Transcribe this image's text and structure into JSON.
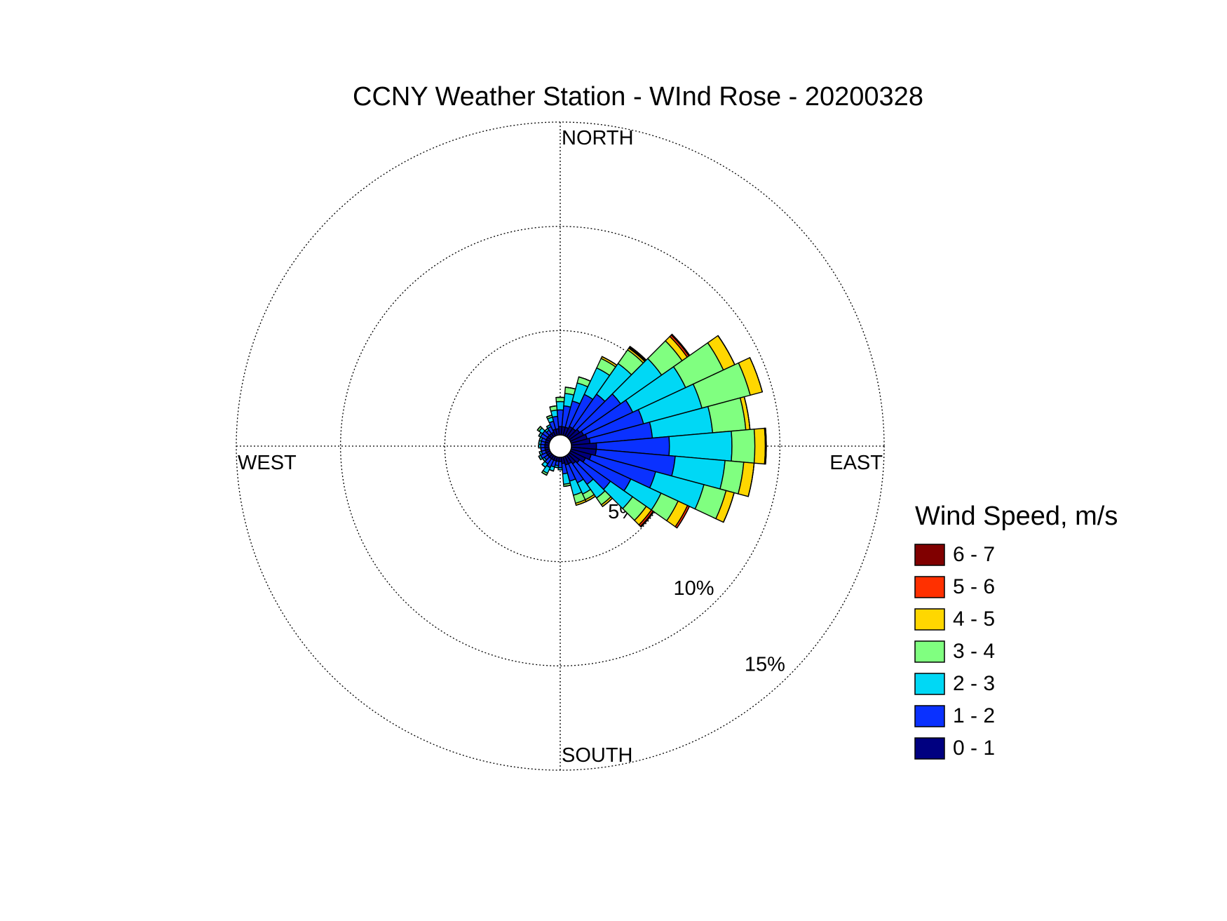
{
  "chart_data": {
    "type": "windrose",
    "title": "CCNY Weather Station - WInd Rose - 20200328",
    "legend_title": "Wind Speed, m/s",
    "x": [
      0,
      10,
      20,
      30,
      40,
      50,
      60,
      70,
      80,
      90,
      100,
      110,
      120,
      130,
      140,
      150,
      160,
      170,
      180,
      190,
      200,
      210,
      220,
      230,
      240,
      250,
      260,
      270,
      280,
      290,
      300,
      310,
      320,
      330,
      340,
      350
    ],
    "xticks": [
      {
        "value": 0,
        "label": "NORTH"
      },
      {
        "value": 90,
        "label": "EAST"
      },
      {
        "value": 180,
        "label": "SOUTH"
      },
      {
        "value": 270,
        "label": "WEST"
      }
    ],
    "rlim": [
      0,
      15
    ],
    "rticks": [
      {
        "value": 5,
        "label": "5%"
      },
      {
        "value": 10,
        "label": "10%"
      },
      {
        "value": 15,
        "label": "15%"
      }
    ],
    "grid": true,
    "series": [
      {
        "name": "0 - 1",
        "color": "#000080",
        "values": [
          0.4,
          0.4,
          0.4,
          0.5,
          0.5,
          0.6,
          0.7,
          0.8,
          0.9,
          1.2,
          1.2,
          1.0,
          0.8,
          0.6,
          0.5,
          0.4,
          0.4,
          0.3,
          0.2,
          0.2,
          0.2,
          0.2,
          0.2,
          0.2,
          0.2,
          0.2,
          0.2,
          0.2,
          0.2,
          0.2,
          0.2,
          0.2,
          0.2,
          0.2,
          0.3,
          0.3
        ]
      },
      {
        "name": "1 - 2",
        "color": "#0a31ff",
        "values": [
          0.8,
          1.0,
          1.3,
          1.7,
          2.0,
          2.4,
          2.6,
          2.8,
          3.0,
          3.5,
          3.8,
          3.2,
          2.4,
          1.8,
          1.2,
          1.0,
          0.8,
          0.5,
          0.3,
          0.2,
          0.3,
          0.4,
          0.3,
          0.2,
          0.3,
          0.2,
          0.2,
          0.2,
          0.2,
          0.2,
          0.3,
          0.3,
          0.2,
          0.3,
          0.4,
          0.6
        ]
      },
      {
        "name": "2 - 3",
        "color": "#00d8f5",
        "values": [
          0.4,
          0.6,
          0.9,
          1.4,
          1.8,
          2.4,
          2.8,
          2.9,
          2.9,
          3.0,
          2.4,
          2.4,
          1.6,
          1.3,
          0.8,
          0.6,
          0.7,
          0.5,
          0.1,
          0.1,
          0.2,
          0.3,
          0.2,
          0.1,
          0.1,
          0.1,
          0,
          0.1,
          0.1,
          0.1,
          0.1,
          0.2,
          0.1,
          0.1,
          0.2,
          0.3
        ]
      },
      {
        "name": "3 - 4",
        "color": "#80ff80",
        "values": [
          0.2,
          0.3,
          0.3,
          0.5,
          0.8,
          1.2,
          2.0,
          2.4,
          1.6,
          1.1,
          0.9,
          1.1,
          0.9,
          0.8,
          0.4,
          0.3,
          0.4,
          0.1,
          0,
          0,
          0,
          0.1,
          0,
          0,
          0,
          0,
          0,
          0,
          0,
          0,
          0,
          0.1,
          0,
          0,
          0.1,
          0.2
        ]
      },
      {
        "name": "4 - 5",
        "color": "#ffd700",
        "values": [
          0,
          0,
          0,
          0.1,
          0.1,
          0.3,
          0.6,
          0.6,
          0.2,
          0.5,
          0.5,
          0.4,
          0.5,
          0.3,
          0.1,
          0.1,
          0.1,
          0,
          0,
          0,
          0,
          0,
          0,
          0,
          0,
          0,
          0,
          0,
          0,
          0,
          0,
          0,
          0,
          0,
          0,
          0
        ]
      },
      {
        "name": "5 - 6",
        "color": "#ff3000",
        "values": [
          0,
          0,
          0,
          0,
          0.05,
          0.1,
          0,
          0,
          0,
          0.05,
          0,
          0,
          0.1,
          0.1,
          0,
          0,
          0,
          0,
          0,
          0,
          0,
          0,
          0,
          0,
          0,
          0,
          0,
          0,
          0,
          0,
          0,
          0,
          0,
          0,
          0,
          0
        ]
      },
      {
        "name": "6 - 7",
        "color": "#800000",
        "values": [
          0,
          0,
          0,
          0,
          0.05,
          0.05,
          0,
          0,
          0,
          0,
          0,
          0,
          0,
          0.05,
          0,
          0,
          0,
          0,
          0,
          0,
          0,
          0,
          0,
          0,
          0,
          0,
          0,
          0,
          0,
          0,
          0,
          0,
          0,
          0,
          0,
          0
        ]
      }
    ]
  }
}
